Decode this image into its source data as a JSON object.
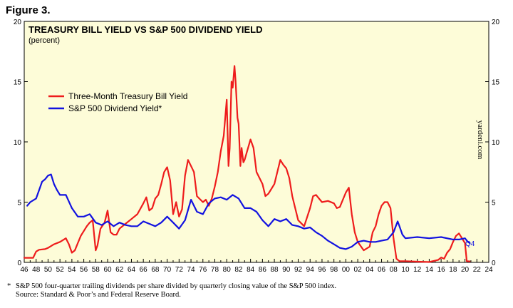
{
  "figure_label": "Figure 3.",
  "watermark": "yardeni.com",
  "end_label": "Q4",
  "footnote": {
    "marker": "*",
    "text": "S&P 500 four-quarter trailing dividends per share divided by quarterly closing value of the S&P 500 index.",
    "source": "Source: Standard & Poor’s and Federal Reserve Board."
  },
  "colors": {
    "plot_bg": "#fdfcd8",
    "treasury": "#ee1c1c",
    "dividend": "#1212e0",
    "axis": "#000000"
  },
  "chart_data": {
    "type": "line",
    "title": "TREASURY BILL YIELD VS S&P 500 DIVIDEND YIELD",
    "subtitle": "(percent)",
    "xlim": [
      1946,
      2024
    ],
    "ylim": [
      0,
      20
    ],
    "y_ticks": [
      "0",
      "5",
      "10",
      "15",
      "20"
    ],
    "x_ticks": [
      "46",
      "48",
      "50",
      "52",
      "54",
      "56",
      "58",
      "60",
      "62",
      "64",
      "66",
      "68",
      "70",
      "72",
      "74",
      "76",
      "78",
      "80",
      "82",
      "84",
      "86",
      "88",
      "90",
      "92",
      "94",
      "96",
      "98",
      "00",
      "02",
      "04",
      "06",
      "08",
      "10",
      "12",
      "14",
      "16",
      "18",
      "20",
      "22",
      "24"
    ],
    "legend_position": "upper-left",
    "grid": false,
    "series": [
      {
        "name": "Three-Month Treasury Bill Yield",
        "color": "#ee1c1c",
        "x": [
          1946.0,
          1947.5,
          1948.0,
          1948.5,
          1949.5,
          1950.0,
          1951.0,
          1952.0,
          1953.0,
          1953.5,
          1954.0,
          1954.5,
          1955.0,
          1955.5,
          1956.0,
          1956.5,
          1957.0,
          1957.5,
          1958.0,
          1958.3,
          1958.8,
          1959.5,
          1960.0,
          1960.5,
          1961.0,
          1961.5,
          1962.0,
          1963.0,
          1964.0,
          1965.0,
          1966.0,
          1966.5,
          1967.0,
          1967.5,
          1968.0,
          1968.5,
          1969.0,
          1969.5,
          1970.0,
          1970.5,
          1971.0,
          1971.5,
          1972.0,
          1972.5,
          1973.0,
          1973.5,
          1974.0,
          1974.5,
          1975.0,
          1976.0,
          1976.5,
          1977.0,
          1977.5,
          1978.0,
          1978.5,
          1979.0,
          1979.5,
          1980.0,
          1980.3,
          1980.5,
          1980.8,
          1981.0,
          1981.3,
          1981.5,
          1981.8,
          1982.0,
          1982.3,
          1982.5,
          1982.8,
          1983.0,
          1984.0,
          1984.5,
          1985.0,
          1986.0,
          1986.5,
          1987.0,
          1988.0,
          1989.0,
          1989.5,
          1990.0,
          1990.5,
          1991.0,
          1991.5,
          1992.0,
          1993.0,
          1994.0,
          1994.5,
          1995.0,
          1996.0,
          1997.0,
          1998.0,
          1998.5,
          1999.0,
          2000.0,
          2000.5,
          2001.0,
          2001.5,
          2002.0,
          2003.0,
          2004.0,
          2004.5,
          2005.0,
          2005.5,
          2006.0,
          2006.5,
          2007.0,
          2007.5,
          2008.0,
          2008.5,
          2009.0,
          2010.0,
          2012.0,
          2014.0,
          2015.5,
          2016.0,
          2016.5,
          2017.0,
          2017.5,
          2018.0,
          2018.5,
          2019.0,
          2019.5,
          2020.0,
          2020.3,
          2020.8
        ],
        "values": [
          0.38,
          0.38,
          0.9,
          1.05,
          1.1,
          1.2,
          1.5,
          1.7,
          2.0,
          1.5,
          0.8,
          1.0,
          1.6,
          2.2,
          2.6,
          3.0,
          3.3,
          3.5,
          1.0,
          1.4,
          2.8,
          3.3,
          4.3,
          2.5,
          2.3,
          2.3,
          2.8,
          3.2,
          3.6,
          4.0,
          4.9,
          5.4,
          4.3,
          4.5,
          5.3,
          5.6,
          6.5,
          7.5,
          7.9,
          6.8,
          4.0,
          5.0,
          3.8,
          4.4,
          7.2,
          8.5,
          8.0,
          7.5,
          5.5,
          5.0,
          5.2,
          4.7,
          5.3,
          6.3,
          7.5,
          9.2,
          10.5,
          13.5,
          8.0,
          9.5,
          15.0,
          14.5,
          16.3,
          15.0,
          12.0,
          11.5,
          8.0,
          9.5,
          8.3,
          8.5,
          10.2,
          9.5,
          7.5,
          6.5,
          5.5,
          5.7,
          6.5,
          8.5,
          8.1,
          7.8,
          7.0,
          5.5,
          4.5,
          3.5,
          3.0,
          4.5,
          5.5,
          5.6,
          5.0,
          5.1,
          4.9,
          4.5,
          4.6,
          5.8,
          6.2,
          4.0,
          2.5,
          1.7,
          1.0,
          1.3,
          2.5,
          3.0,
          4.0,
          4.7,
          5.0,
          5.0,
          4.5,
          2.0,
          0.3,
          0.1,
          0.1,
          0.06,
          0.03,
          0.2,
          0.4,
          0.3,
          0.8,
          1.1,
          1.7,
          2.2,
          2.4,
          2.0,
          1.6,
          0.1,
          0.08
        ]
      },
      {
        "name": "S&P 500 Dividend Yield*",
        "color": "#1212e0",
        "x": [
          1946.5,
          1947.0,
          1948.0,
          1948.5,
          1949.0,
          1949.5,
          1950.0,
          1950.5,
          1951.0,
          1951.5,
          1952.0,
          1953.0,
          1954.0,
          1955.0,
          1956.0,
          1957.0,
          1958.0,
          1959.0,
          1960.0,
          1961.0,
          1962.0,
          1963.0,
          1964.0,
          1965.0,
          1966.0,
          1967.0,
          1968.0,
          1969.0,
          1970.0,
          1971.0,
          1972.0,
          1973.0,
          1974.0,
          1975.0,
          1976.0,
          1977.0,
          1978.0,
          1979.0,
          1980.0,
          1981.0,
          1982.0,
          1983.0,
          1984.0,
          1985.0,
          1986.0,
          1987.0,
          1988.0,
          1989.0,
          1990.0,
          1991.0,
          1992.0,
          1993.0,
          1994.0,
          1995.0,
          1996.0,
          1997.0,
          1998.0,
          1999.0,
          2000.0,
          2001.0,
          2002.0,
          2003.0,
          2004.0,
          2005.0,
          2006.0,
          2007.0,
          2008.0,
          2008.7,
          2009.0,
          2009.5,
          2010.0,
          2012.0,
          2014.0,
          2016.0,
          2018.0,
          2019.0,
          2020.0,
          2020.5,
          2020.8
        ],
        "values": [
          4.7,
          5.0,
          5.3,
          6.0,
          6.7,
          6.9,
          7.2,
          7.3,
          6.5,
          6.0,
          5.6,
          5.6,
          4.5,
          3.8,
          3.8,
          4.0,
          3.3,
          3.1,
          3.4,
          3.0,
          3.3,
          3.1,
          3.0,
          3.0,
          3.4,
          3.2,
          3.0,
          3.3,
          3.8,
          3.3,
          2.8,
          3.5,
          5.2,
          4.2,
          4.0,
          4.9,
          5.3,
          5.4,
          5.2,
          5.6,
          5.3,
          4.5,
          4.5,
          4.2,
          3.5,
          3.0,
          3.6,
          3.4,
          3.6,
          3.1,
          3.0,
          2.8,
          2.9,
          2.5,
          2.2,
          1.8,
          1.5,
          1.2,
          1.1,
          1.3,
          1.7,
          1.8,
          1.7,
          1.7,
          1.8,
          1.9,
          2.5,
          3.4,
          3.0,
          2.3,
          2.0,
          2.1,
          2.0,
          2.1,
          1.9,
          1.9,
          2.0,
          1.7,
          1.6
        ]
      }
    ]
  }
}
